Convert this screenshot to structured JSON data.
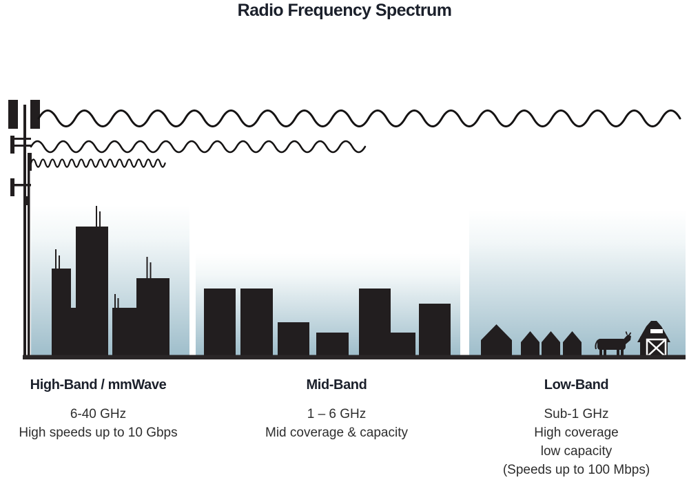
{
  "title": "Radio Frequency Spectrum",
  "colors": {
    "silhouette": "#221e1f",
    "sky_top": "#ffffff",
    "sky_bottom": "#9fbecb",
    "heading_text": "#1b202b",
    "body_text": "#2d2d2d",
    "ground": "#2a2627"
  },
  "bands": [
    {
      "id": "high-band",
      "heading": "High-Band / mmWave",
      "lines": [
        "6-40 GHz",
        "High speeds up to 10 Gbps"
      ],
      "wave": "short-wavelength-high-frequency",
      "scene": "dense-city-skyscrapers"
    },
    {
      "id": "mid-band",
      "heading": "Mid-Band",
      "lines": [
        "1 – 6 GHz",
        "Mid coverage & capacity"
      ],
      "wave": "medium-wavelength",
      "scene": "mid-rise-buildings"
    },
    {
      "id": "low-band",
      "heading": "Low-Band",
      "lines": [
        "Sub-1 GHz",
        "High coverage",
        "low capacity",
        "(Speeds up to 100 Mbps)"
      ],
      "wave": "long-wavelength-low-frequency",
      "scene": "rural-houses-cow-barn"
    }
  ]
}
